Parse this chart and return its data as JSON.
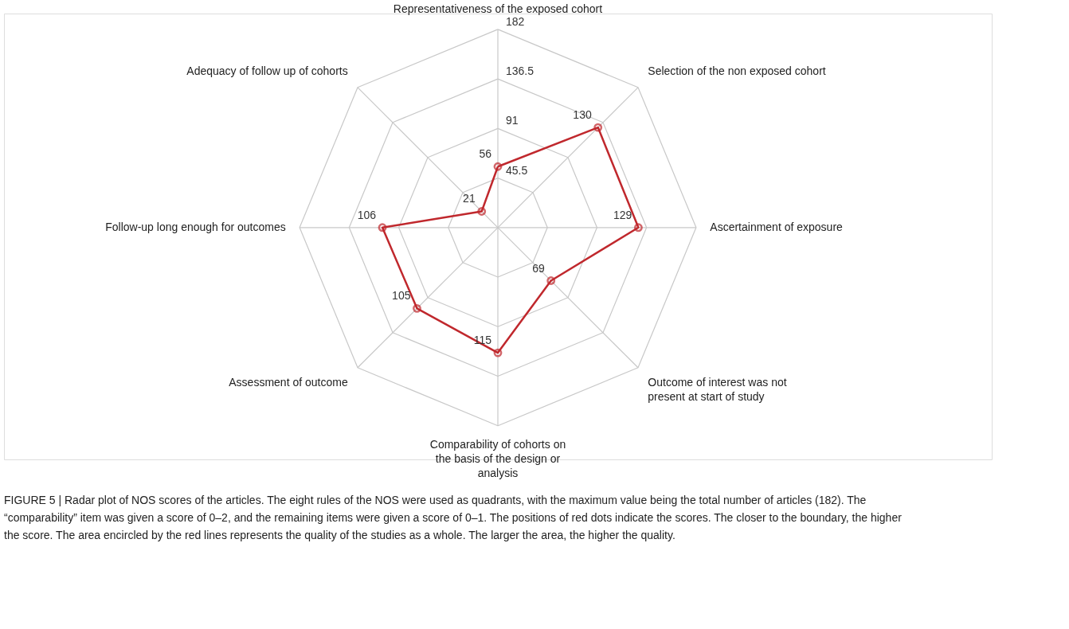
{
  "chart_data": {
    "type": "radar",
    "categories": [
      "Representativeness of the exposed cohort",
      "Selection of the non exposed cohort",
      "Ascertainment of exposure",
      "Outcome of interest was not present at start of study",
      "Comparability of cohorts on the basis of the design or analysis",
      "Assessment of outcome",
      "Follow-up long enough for outcomes",
      "Adequacy of follow up of cohorts"
    ],
    "series": [
      {
        "color": "#c0282d",
        "values": [
          56,
          130,
          129,
          69,
          115,
          105,
          106,
          21
        ]
      }
    ],
    "ylim": [
      0,
      182
    ],
    "yticks": [
      45.5,
      91,
      136.5,
      182
    ],
    "grid": true,
    "marker": "circle",
    "data_labels": true,
    "annotations": [
      "FIGURE 5 | Radar plot of NOS scores of the articles. The eight rules of the NOS were used as quadrants, with the maximum value being the total number of articles (182). The “comparability” item was given a score of 0–2, and the remaining items were given a score of 0–1. The positions of red dots indicate the scores. The closer to the boundary, the higher the score. The area encircled by the red lines represents the quality of the studies as a whole. The larger the area, the higher the quality."
    ]
  }
}
